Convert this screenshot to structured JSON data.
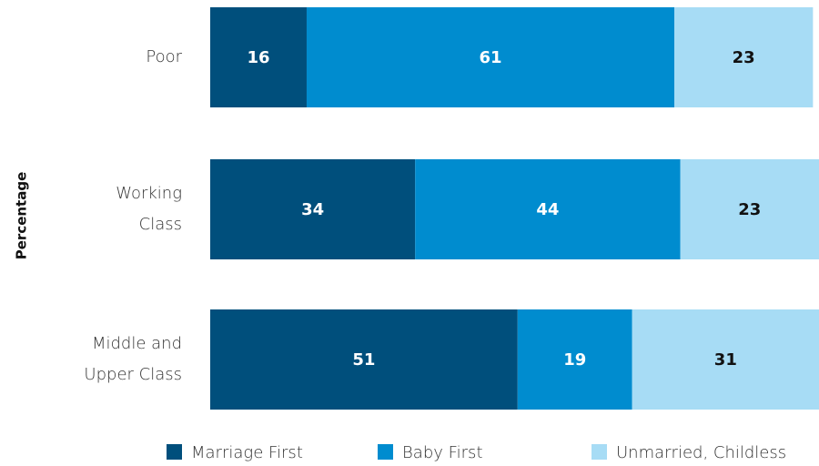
{
  "chart_data": {
    "type": "stacked_bar_horizontal",
    "y_label": "Percentage",
    "categories": [
      "Poor",
      "Working Class",
      "Middle and Upper Class"
    ],
    "series": [
      {
        "name": "Marriage First",
        "color": "#004f7c",
        "label_color": "#ffffff",
        "values": [
          16,
          34,
          51
        ]
      },
      {
        "name": "Baby First",
        "color": "#008ccf",
        "label_color": "#ffffff",
        "values": [
          61,
          44,
          19
        ]
      },
      {
        "name": "Unmarried, Childless",
        "color": "#a7dcf5",
        "label_color": "#111111",
        "values": [
          23,
          23,
          31
        ]
      }
    ]
  }
}
